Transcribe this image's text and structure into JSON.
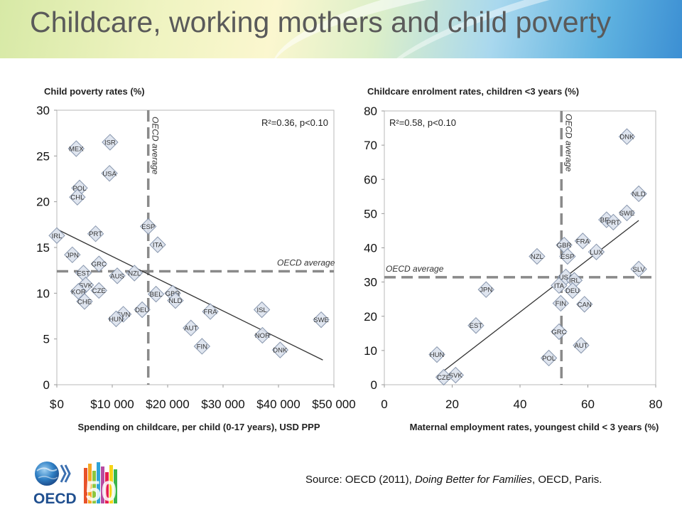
{
  "title": "Childcare, working mothers and child poverty",
  "source": {
    "prefix": "Source: OECD (2011), ",
    "italic": "Doing Better for Families",
    "suffix": ", OECD, Paris."
  },
  "logo": {
    "text": "OECD",
    "number": "50"
  },
  "colors": {
    "marker_fill": "#dde3ee",
    "marker_stroke": "#7f8fa8",
    "dash": "#8a8a8a",
    "line": "#333333"
  },
  "chart_data": [
    {
      "type": "scatter",
      "ylabel": "Child poverty rates (%)",
      "xlabel": "Spending on childcare, per child (0-17 years), USD PPP",
      "xlim": [
        0,
        50000
      ],
      "ylim": [
        0,
        30
      ],
      "x_ticks": [
        0,
        10000,
        20000,
        30000,
        40000,
        50000
      ],
      "x_tick_labels": [
        "$ 0",
        "$10 000",
        "$20 000",
        "$30 000",
        "$40 000",
        "$50 000"
      ],
      "y_ticks": [
        0,
        5,
        10,
        15,
        20,
        25,
        30
      ],
      "y_tick_labels": [
        "0",
        "5",
        "10",
        "15",
        "20",
        "25",
        "30"
      ],
      "annotation": "R²=0.36, p<0.10",
      "oecd_label": "OECD average",
      "oecd_avg_x": 16500,
      "oecd_avg_y": 12.4,
      "trend": {
        "x": [
          0,
          48000
        ],
        "y": [
          17.0,
          2.7
        ]
      },
      "points": [
        {
          "label": "IRL",
          "x": 0,
          "y": 16.3
        },
        {
          "label": "MEX",
          "x": 3500,
          "y": 25.8
        },
        {
          "label": "ISR",
          "x": 9600,
          "y": 26.5
        },
        {
          "label": "USA",
          "x": 9500,
          "y": 23.1
        },
        {
          "label": "POL",
          "x": 4100,
          "y": 21.5
        },
        {
          "label": "CHL",
          "x": 3700,
          "y": 20.5
        },
        {
          "label": "PRT",
          "x": 7000,
          "y": 16.5
        },
        {
          "label": "JPN",
          "x": 2800,
          "y": 14.2
        },
        {
          "label": "GRC",
          "x": 7600,
          "y": 13.2
        },
        {
          "label": "EST",
          "x": 4800,
          "y": 12.2
        },
        {
          "label": "AUS",
          "x": 10900,
          "y": 11.9
        },
        {
          "label": "NZL",
          "x": 14000,
          "y": 12.2
        },
        {
          "label": "SVK",
          "x": 5200,
          "y": 10.9
        },
        {
          "label": "KOR",
          "x": 3900,
          "y": 10.2
        },
        {
          "label": "CZE",
          "x": 7600,
          "y": 10.3
        },
        {
          "label": "CHE",
          "x": 5000,
          "y": 9.1
        },
        {
          "label": "ESP",
          "x": 16500,
          "y": 17.3
        },
        {
          "label": "ITA",
          "x": 18200,
          "y": 15.3
        },
        {
          "label": "BEL",
          "x": 17900,
          "y": 9.9
        },
        {
          "label": "GBR",
          "x": 20900,
          "y": 10.0
        },
        {
          "label": "NLD",
          "x": 21400,
          "y": 9.2
        },
        {
          "label": "DEU",
          "x": 15400,
          "y": 8.2
        },
        {
          "label": "SVN",
          "x": 12000,
          "y": 7.7
        },
        {
          "label": "HUN",
          "x": 10700,
          "y": 7.2
        },
        {
          "label": "FRA",
          "x": 27700,
          "y": 8.0
        },
        {
          "label": "ISL",
          "x": 37000,
          "y": 8.2
        },
        {
          "label": "SWE",
          "x": 47700,
          "y": 7.1
        },
        {
          "label": "AUT",
          "x": 24200,
          "y": 6.2
        },
        {
          "label": "NOR",
          "x": 37100,
          "y": 5.4
        },
        {
          "label": "FIN",
          "x": 26200,
          "y": 4.2
        },
        {
          "label": "DNK",
          "x": 40300,
          "y": 3.8
        }
      ]
    },
    {
      "type": "scatter",
      "ylabel": "Childcare enrolment rates, children <3 years (%)",
      "xlabel": "Maternal employment rates, youngest child < 3 years (%)",
      "xlim": [
        0,
        80
      ],
      "ylim": [
        0,
        80
      ],
      "x_ticks": [
        0,
        20,
        40,
        60,
        80
      ],
      "x_tick_labels": [
        "0",
        "20",
        "40",
        "60",
        "80"
      ],
      "y_ticks": [
        0,
        10,
        20,
        30,
        40,
        50,
        60,
        70,
        80
      ],
      "y_tick_labels": [
        "0",
        "10",
        "20",
        "30",
        "40",
        "50",
        "60",
        "70",
        "80"
      ],
      "annotation": "R²=0.58, p<0.10",
      "oecd_label": "OECD average",
      "oecd_avg_x": 52.2,
      "oecd_avg_y": 31.4,
      "trend": {
        "x": [
          15.5,
          75
        ],
        "y": [
          2.5,
          48.0
        ]
      },
      "points": [
        {
          "label": "DNK",
          "x": 71.5,
          "y": 72.5
        },
        {
          "label": "NLD",
          "x": 75,
          "y": 55.8
        },
        {
          "label": "SWE",
          "x": 71.5,
          "y": 50.2
        },
        {
          "label": "BEL",
          "x": 65.5,
          "y": 48.2
        },
        {
          "label": "PRT",
          "x": 67.5,
          "y": 47.5
        },
        {
          "label": "FRA",
          "x": 58.5,
          "y": 42.0
        },
        {
          "label": "GBR",
          "x": 53,
          "y": 40.8
        },
        {
          "label": "ESP",
          "x": 54,
          "y": 37.5
        },
        {
          "label": "LUX",
          "x": 62.5,
          "y": 38.8
        },
        {
          "label": "NZL",
          "x": 45,
          "y": 37.5
        },
        {
          "label": "SLV",
          "x": 75,
          "y": 33.8
        },
        {
          "label": "USA",
          "x": 53.5,
          "y": 31.5
        },
        {
          "label": "IRL",
          "x": 56,
          "y": 30.5
        },
        {
          "label": "ITA",
          "x": 51.5,
          "y": 29.0
        },
        {
          "label": "DEU",
          "x": 55.5,
          "y": 27.5
        },
        {
          "label": "FIN",
          "x": 52,
          "y": 23.8
        },
        {
          "label": "CAN",
          "x": 59,
          "y": 23.5
        },
        {
          "label": "JPN",
          "x": 30,
          "y": 27.8
        },
        {
          "label": "EST",
          "x": 27,
          "y": 17.3
        },
        {
          "label": "GRC",
          "x": 51.5,
          "y": 15.5
        },
        {
          "label": "AUT",
          "x": 58,
          "y": 11.5
        },
        {
          "label": "POL",
          "x": 48.5,
          "y": 7.8
        },
        {
          "label": "HUN",
          "x": 15.5,
          "y": 8.8
        },
        {
          "label": "SVK",
          "x": 21,
          "y": 2.8
        },
        {
          "label": "CZE",
          "x": 17.5,
          "y": 2.2
        }
      ]
    }
  ]
}
